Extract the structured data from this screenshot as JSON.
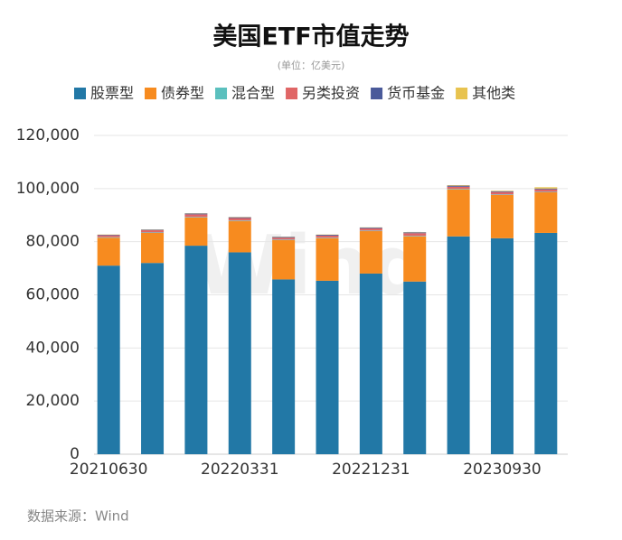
{
  "chart_data": {
    "type": "stacked_bar",
    "title": "美国ETF市值走势",
    "subtitle": "(单位：亿美元)",
    "watermark": "Wind",
    "source": "数据来源：Wind",
    "categories": [
      "20210630",
      null,
      null,
      "20220331",
      null,
      null,
      "20221231",
      null,
      null,
      "20230930",
      null
    ],
    "series": [
      {
        "name": "股票型",
        "color": "#2278a6",
        "values": [
          71000,
          72000,
          78500,
          76000,
          65800,
          65300,
          68000,
          65000,
          82000,
          81300,
          83300
        ]
      },
      {
        "name": "债券型",
        "color": "#f78b1f",
        "values": [
          10500,
          11300,
          10600,
          11800,
          14800,
          16000,
          16000,
          17000,
          17700,
          16300,
          15300
        ]
      },
      {
        "name": "混合型",
        "color": "#5bc0be",
        "values": [
          200,
          200,
          200,
          200,
          200,
          200,
          200,
          200,
          200,
          200,
          200
        ]
      },
      {
        "name": "另类投资",
        "color": "#e06666",
        "values": [
          700,
          800,
          1000,
          900,
          700,
          800,
          800,
          1000,
          800,
          900,
          900
        ]
      },
      {
        "name": "货币基金",
        "color": "#4a5a9a",
        "values": [
          200,
          200,
          300,
          300,
          300,
          300,
          300,
          300,
          400,
          300,
          300
        ]
      },
      {
        "name": "其他类",
        "color": "#e8c34f",
        "values": [
          100,
          100,
          100,
          100,
          100,
          100,
          100,
          100,
          200,
          200,
          500
        ]
      }
    ],
    "ylim": [
      0,
      120000
    ],
    "yticks": [
      0,
      {
        "value": 20000,
        "label": "20,000"
      },
      {
        "value": 40000,
        "label": "40,000"
      },
      {
        "value": 60000,
        "label": "60,000"
      },
      {
        "value": 80000,
        "label": "80,000"
      },
      {
        "value": 100000,
        "label": "100,000"
      },
      {
        "value": 120000,
        "label": "120,000"
      }
    ],
    "grid": true
  }
}
